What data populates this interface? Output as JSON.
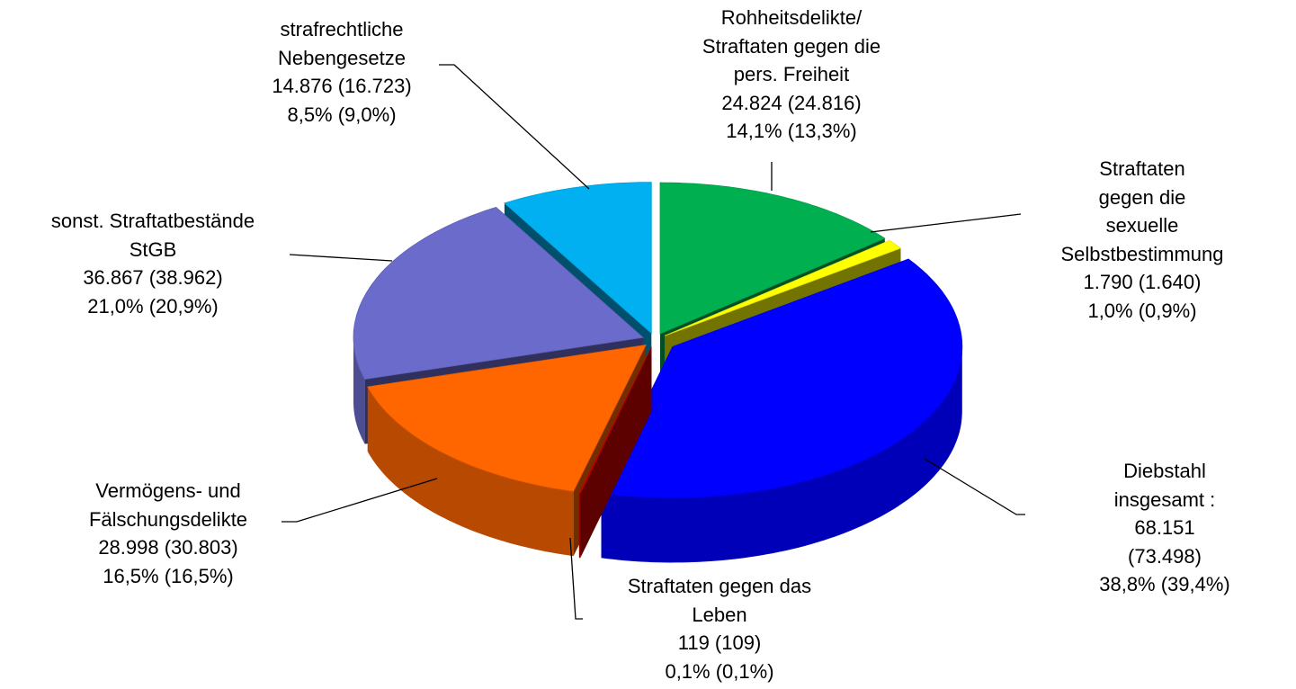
{
  "chart_data": {
    "type": "pie3d",
    "categories": [
      "Rohheitsdelikte/\nStraftaten gegen die\npers. Freiheit",
      "Straftaten\ngegen die sexuelle\nSelbstbestimmung",
      "Diebstahl insgesamt :",
      "Straftaten gegen das\nLeben",
      "Vermögens- und\nFälschungsdelikte",
      "sonst. Straftatbestände\nStGB",
      "strafrechtliche\nNebengesetze"
    ],
    "values": [
      24824,
      1790,
      68151,
      119,
      28998,
      36867,
      14876
    ],
    "value_labels": [
      "24.824 (24.816)",
      "1.790 (1.640)",
      "68.151 (73.498)",
      "119 (109)",
      "28.998 (30.803)",
      "36.867 (38.962)",
      "14.876 (16.723)"
    ],
    "percent_labels": [
      "14,1% (13,3%)",
      "1,0% (0,9%)",
      "38,8% (39,4%)",
      "0,1% (0,1%)",
      "16,5% (16,5%)",
      "21,0% (20,9%)",
      "8,5% (9,0%)"
    ],
    "colors": [
      "#00b050",
      "#ffff00",
      "#0000ff",
      "#cc0000",
      "#ff6600",
      "#6b6bcc",
      "#00b0f0"
    ]
  }
}
